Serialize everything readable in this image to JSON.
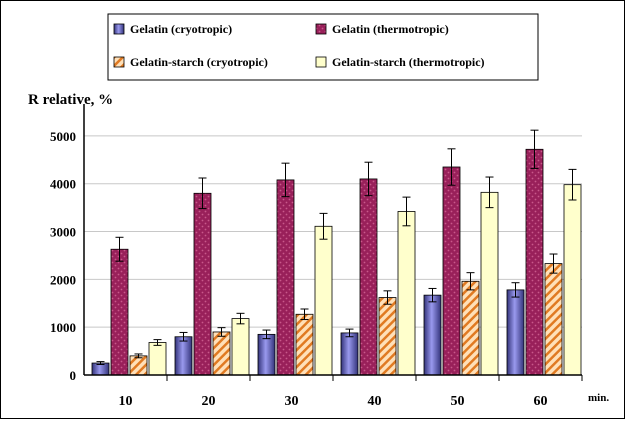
{
  "chart_data": {
    "type": "bar",
    "title": "",
    "ylabel": "R relative, %",
    "xlabel": "",
    "x_unit": "min.",
    "categories": [
      "10",
      "20",
      "30",
      "40",
      "50",
      "60"
    ],
    "ylim": [
      0,
      5500
    ],
    "yticks": [
      "0",
      "1000",
      "2000",
      "3000",
      "4000",
      "5000"
    ],
    "grid": true,
    "legend_position": "top",
    "series": [
      {
        "name": "Gelatin (cryotropic)",
        "values": [
          250,
          800,
          850,
          880,
          1670,
          1780
        ],
        "errors": [
          30,
          90,
          90,
          80,
          140,
          150
        ],
        "color": "#6666cc"
      },
      {
        "name": "Gelatin (thermotropic)",
        "values": [
          2630,
          3800,
          4080,
          4100,
          4350,
          4720
        ],
        "errors": [
          250,
          320,
          350,
          350,
          380,
          400
        ],
        "color": "#99205a"
      },
      {
        "name": "Gelatin-starch (cryotropic)",
        "values": [
          400,
          900,
          1270,
          1620,
          1960,
          2330
        ],
        "errors": [
          40,
          90,
          110,
          140,
          180,
          200
        ],
        "color": "#ffcc99"
      },
      {
        "name": "Gelatin-starch (thermotropic)",
        "values": [
          680,
          1180,
          3110,
          3420,
          3820,
          3980
        ],
        "errors": [
          60,
          110,
          270,
          300,
          320,
          320
        ],
        "color": "#ffffcc"
      }
    ]
  }
}
